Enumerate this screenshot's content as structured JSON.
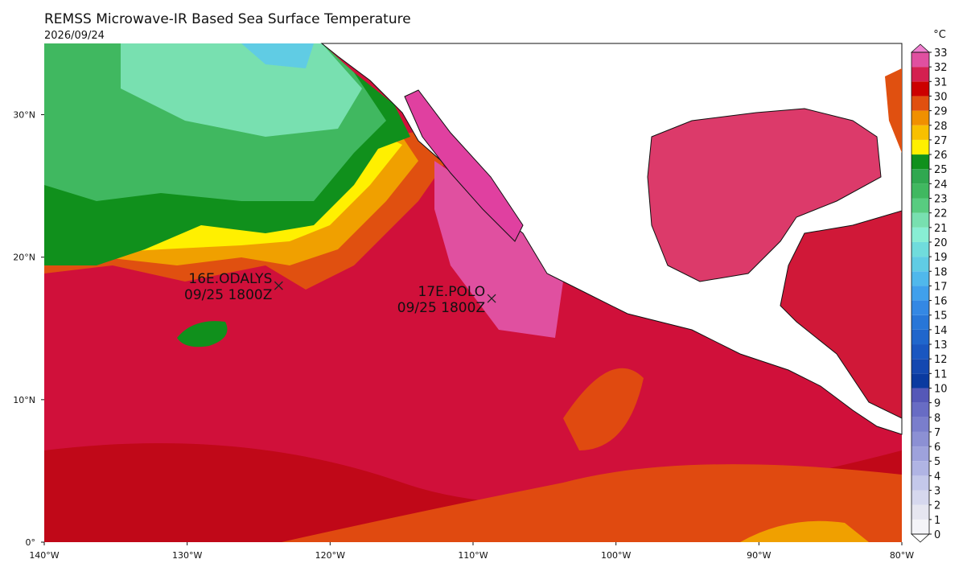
{
  "title": "REMSS Microwave-IR Based Sea Surface Temperature",
  "date": "2026/09/24",
  "map": {
    "xlim": [
      -140,
      -80
    ],
    "ylim": [
      0,
      35
    ],
    "xticks": [
      {
        "value": -140,
        "label": "140°W"
      },
      {
        "value": -130,
        "label": "130°W"
      },
      {
        "value": -120,
        "label": "120°W"
      },
      {
        "value": -110,
        "label": "110°W"
      },
      {
        "value": -100,
        "label": "100°W"
      },
      {
        "value": -90,
        "label": "90°W"
      },
      {
        "value": -80,
        "label": "80°W"
      }
    ],
    "yticks": [
      {
        "value": 0,
        "label": "0°"
      },
      {
        "value": 10,
        "label": "10°N"
      },
      {
        "value": 20,
        "label": "20°N"
      },
      {
        "value": 30,
        "label": "30°N"
      }
    ],
    "storms": [
      {
        "name": "16E.ODALYS",
        "time": "09/25 1800Z",
        "lon": -123.6,
        "lat": 18.0
      },
      {
        "name": "17E.POLO",
        "time": "09/25 1800Z",
        "lon": -108.7,
        "lat": 17.1
      }
    ]
  },
  "colorbar": {
    "unit": "°C",
    "ticks": [
      0,
      1,
      2,
      3,
      4,
      5,
      6,
      7,
      8,
      9,
      10,
      11,
      12,
      13,
      14,
      15,
      16,
      17,
      18,
      19,
      20,
      21,
      22,
      23,
      24,
      25,
      26,
      27,
      28,
      29,
      30,
      31,
      32,
      33
    ],
    "colors": [
      "#f4f4f8",
      "#e6e6f0",
      "#d6d8ee",
      "#c4c8ea",
      "#b0b4e4",
      "#9ea2dc",
      "#8c90d4",
      "#7a7ecc",
      "#686cc4",
      "#5558b8",
      "#0a3aa0",
      "#1448b0",
      "#1a56c0",
      "#2066cc",
      "#2876d8",
      "#3488e4",
      "#40a0ec",
      "#50b8ec",
      "#60cce4",
      "#70dcdc",
      "#88eed4",
      "#78e0b0",
      "#58cc80",
      "#40b860",
      "#30a850",
      "#10901c",
      "#fff000",
      "#f8c000",
      "#f09000",
      "#e05010",
      "#cc0000",
      "#d42050",
      "#e050a0",
      "#f080d0"
    ]
  }
}
